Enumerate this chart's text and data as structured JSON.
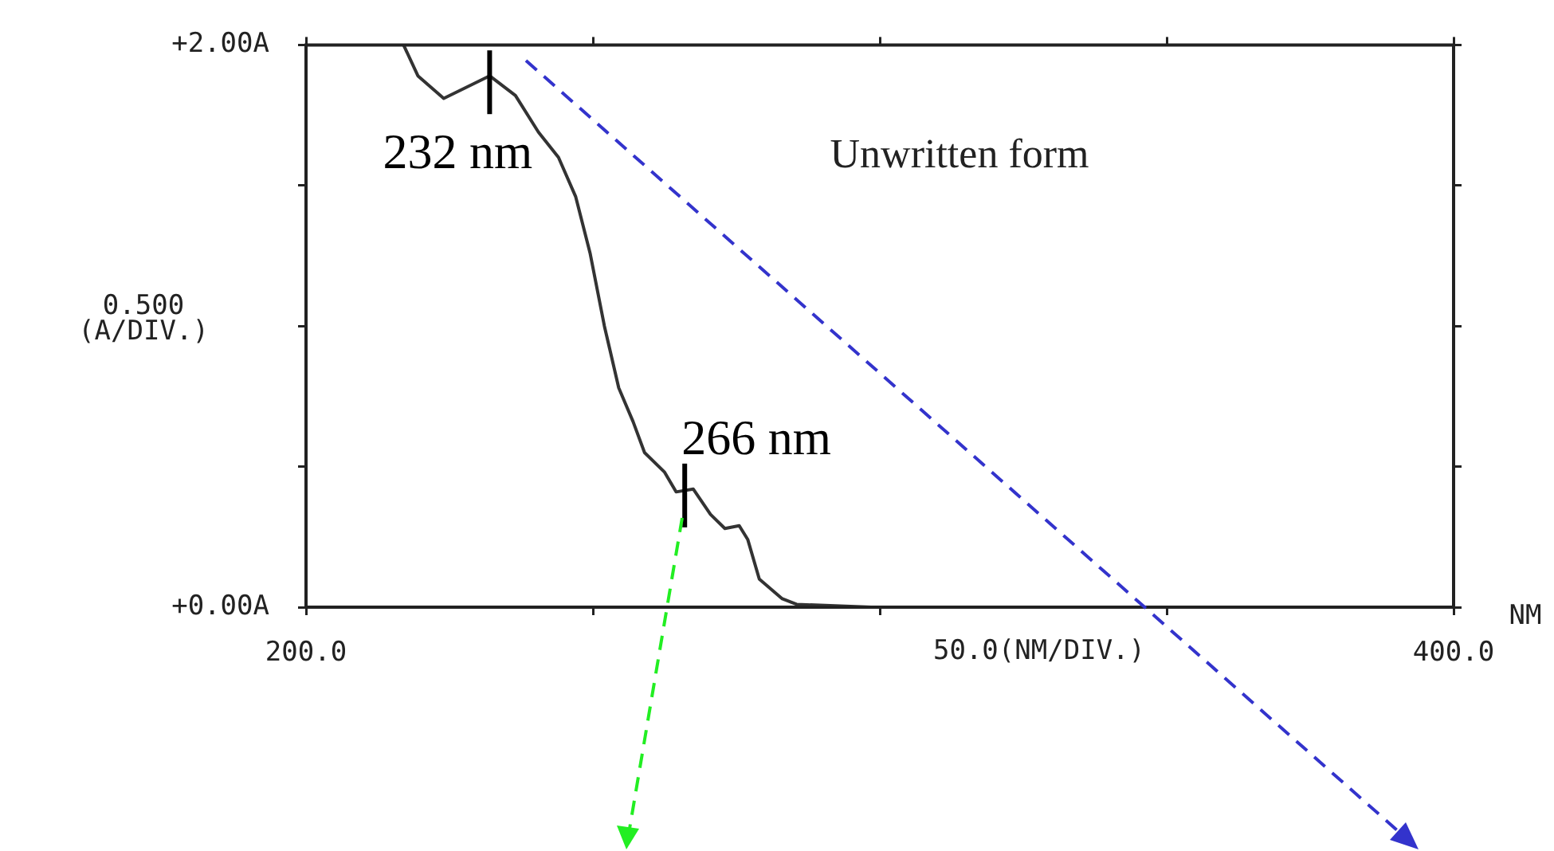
{
  "chart_data": {
    "type": "line",
    "x": [
      217,
      219.5,
      224,
      232,
      236.5,
      240.5,
      244,
      247,
      249.5,
      252,
      254.5,
      257,
      259,
      262.5,
      264.5,
      267.5,
      270.5,
      273,
      275.5,
      277,
      279,
      283,
      285.5,
      298.5,
      310.5
    ],
    "series": [
      {
        "color": "#333333",
        "values": [
          2.0,
          1.89,
          1.81,
          1.89,
          1.82,
          1.69,
          1.6,
          1.46,
          1.26,
          1.0,
          0.78,
          0.66,
          0.55,
          0.48,
          0.41,
          0.42,
          0.33,
          0.28,
          0.29,
          0.24,
          0.1,
          0.03,
          0.01,
          0.0,
          0.0
        ]
      }
    ],
    "xlim": [
      200,
      400
    ],
    "xticks": [
      {
        "value": 200,
        "label": "200.0"
      },
      {
        "value": 250,
        "label": null
      },
      {
        "value": 300,
        "label": null
      },
      {
        "value": 350,
        "label": null
      },
      {
        "value": 400,
        "label": "400.0"
      }
    ],
    "ylim": [
      0,
      2
    ],
    "yticks": [
      {
        "value": 0,
        "label": "+0.00A"
      },
      {
        "value": 0.5,
        "label": null
      },
      {
        "value": 1,
        "label": null
      },
      {
        "value": 1.5,
        "label": null
      },
      {
        "value": 2,
        "label": "+2.00A"
      }
    ],
    "xlabel": "50.0(NM/DIV.)",
    "ylabel": "0.500 (A/DIV.)",
    "annotations": [
      {
        "text": "232 nm",
        "x": 232,
        "y": 1.89
      },
      {
        "text": "266 nm",
        "x": 266,
        "y": 0.42
      },
      "Unwritten form",
      "NM"
    ],
    "grid": false,
    "legend": false,
    "marker": "none",
    "line_style": "solid"
  }
}
